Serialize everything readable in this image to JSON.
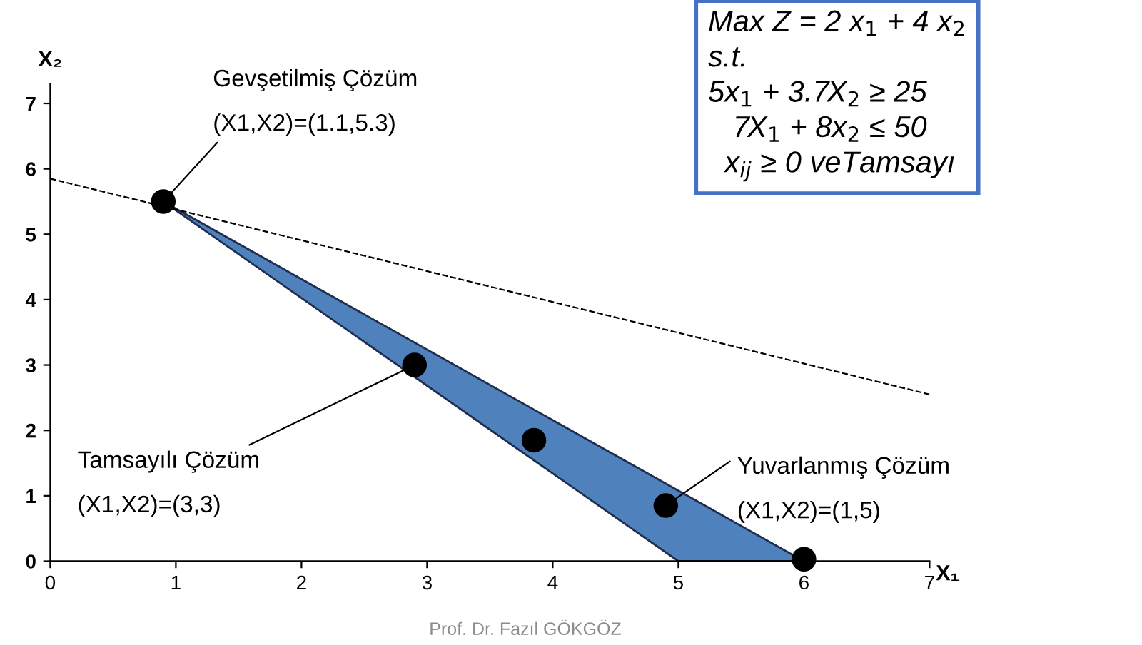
{
  "chart_data": {
    "type": "scatter",
    "xlabel": "X₁",
    "ylabel": "X₂",
    "xlim": [
      0,
      7
    ],
    "ylim": [
      0,
      7.3
    ],
    "xticks": [
      0,
      1,
      2,
      3,
      4,
      5,
      6,
      7
    ],
    "yticks": [
      0,
      1,
      2,
      3,
      4,
      5,
      6,
      7
    ],
    "grid": false,
    "series": [
      {
        "type": "area",
        "x": [
          0.9,
          5,
          6,
          0.9
        ],
        "values": [
          5.5,
          0,
          0,
          5.5
        ],
        "color": "#4f81bd"
      },
      {
        "type": "line",
        "x": [
          0,
          7
        ],
        "values": [
          5.85,
          2.55
        ],
        "color": "#000000",
        "line_style": "dashed",
        "marker": "none"
      },
      {
        "x": [
          0.9,
          2.9,
          3.85,
          4.9,
          6
        ],
        "values": [
          5.5,
          3.0,
          1.85,
          0.85,
          0.03
        ],
        "color": "#000000",
        "marker": "circle"
      }
    ],
    "annotations": [
      {
        "text": "Gevşetilmiş Çözüm\n\n(X1,X2)=(1.1,5.3)",
        "x": 0.9,
        "y": 5.5
      },
      {
        "text": "Tamsayılı Çözüm\n\n(X1,X2)=(3,3)",
        "x": 2.9,
        "y": 3.0
      },
      {
        "text": "Yuvarlanmış Çözüm\n\n(X1,X2)=(1,5)",
        "x": 4.9,
        "y": 0.85
      },
      "Max Z = 2 x$_{1}$ + 4 x$_{2}$\ns.t.\n5x$_{1}$ + 3.7X$_{2}$ ≥ 25\n   7X$_{1}$ + 8x$_{2}$ ≤ 50\n  x$_{ij}$ ≥ 0 veTamsayı",
      "Prof. Dr. Fazıl GÖKGÖZ"
    ]
  }
}
